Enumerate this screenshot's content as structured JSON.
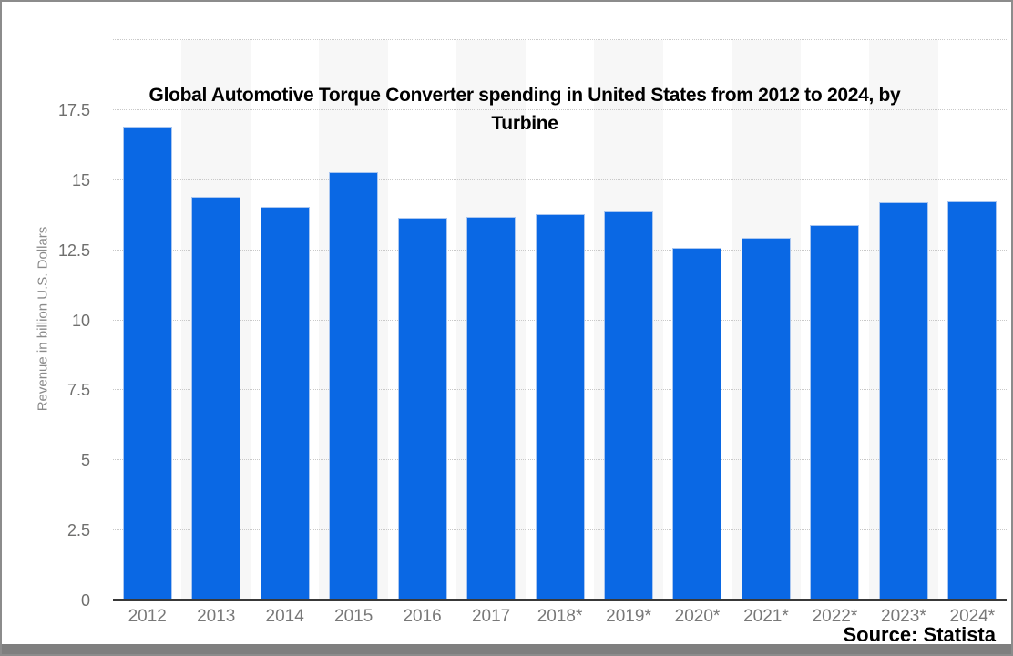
{
  "title": {
    "lines": [
      "Global Automotive Torque Converter spending in United States from 2012 to 2024, by",
      "Turbine"
    ]
  },
  "source": {
    "label": "Source: Statista"
  },
  "chart_data": {
    "type": "bar",
    "title": "Global Automotive Torque Converter spending in United States from 2012 to 2024, by Turbine",
    "categories": [
      "2012",
      "2013",
      "2014",
      "2015",
      "2016",
      "2017",
      "2018*",
      "2019*",
      "2020*",
      "2021*",
      "2022*",
      "2023*",
      "2024*"
    ],
    "values": [
      16.9,
      14.4,
      14.05,
      15.3,
      13.65,
      13.7,
      13.8,
      13.9,
      12.6,
      12.95,
      13.4,
      14.2,
      14.25
    ],
    "xlabel": "",
    "ylabel": "Revenue in billion U.S. Dollars",
    "ylim": [
      0,
      20
    ],
    "yticks": [
      0,
      2.5,
      5,
      7.5,
      10,
      12.5,
      15,
      17.5
    ],
    "grid": true,
    "legend": "none",
    "bar_color": "#0a68e4",
    "bar_border_color": "#a9c6f0",
    "band_color": "#f7f7f7",
    "gridline_color": "#c9c9c9",
    "axis_line_color": "#383838",
    "tick_label_color": "#6f6f6e",
    "title_color": "#000000"
  }
}
